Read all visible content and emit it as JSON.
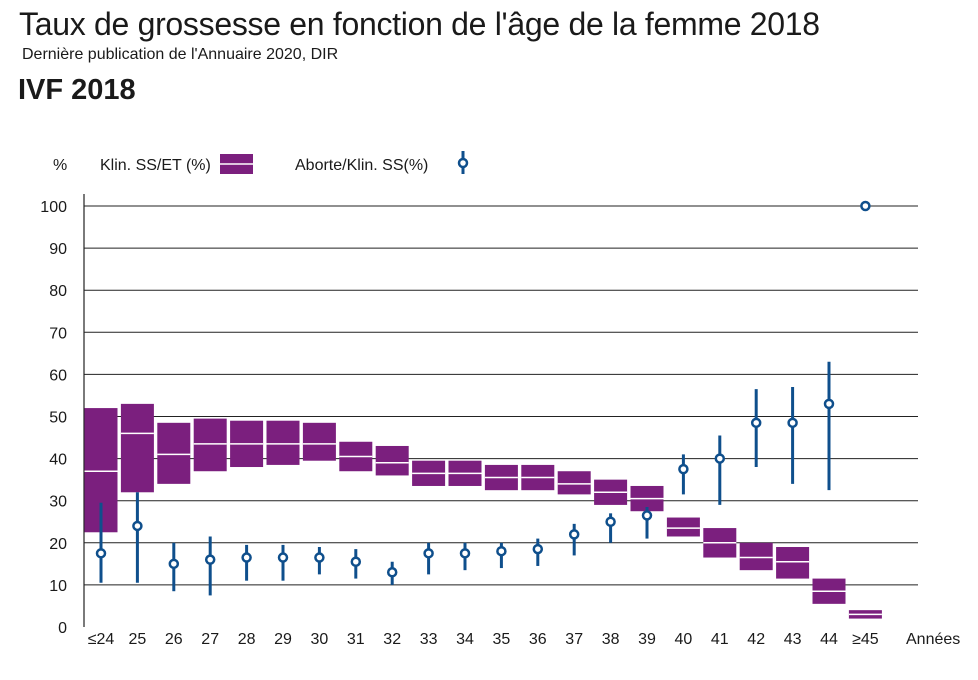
{
  "title": "Taux de grossesse en fonction de l'âge de la femme 2018",
  "subtitle": "Dernière publication de l'Annuaire 2020, DIR",
  "heading": "IVF 2018",
  "colors": {
    "box": "#7b1f7e",
    "dot": "#0f4f8c",
    "grid": "#222222"
  },
  "chart_data": {
    "type": "boxplot-with-error-bars",
    "ylabel": "%",
    "xlabel": "Années",
    "ylim": [
      0,
      100
    ],
    "yticks": [
      0,
      10,
      20,
      30,
      40,
      50,
      60,
      70,
      80,
      90,
      100
    ],
    "legend": {
      "box_label": "Klin. SS/ET (%)",
      "dot_label": "Aborte/Klin. SS(%)"
    },
    "categories": [
      "≤24",
      "25",
      "26",
      "27",
      "28",
      "29",
      "30",
      "31",
      "32",
      "33",
      "34",
      "35",
      "36",
      "37",
      "38",
      "39",
      "40",
      "41",
      "42",
      "43",
      "44",
      "≥45"
    ],
    "series": [
      {
        "name": "Klin. SS/ET (%)",
        "low": [
          22.5,
          32.0,
          34.0,
          37.0,
          38.0,
          38.5,
          39.5,
          37.0,
          36.0,
          33.5,
          33.5,
          32.5,
          32.5,
          31.5,
          29.0,
          27.5,
          21.5,
          16.5,
          13.5,
          11.5,
          5.5,
          2.0
        ],
        "mid": [
          37.0,
          46.0,
          41.0,
          43.5,
          43.5,
          43.5,
          43.5,
          40.5,
          39.0,
          36.5,
          36.5,
          35.5,
          35.5,
          34.0,
          32.0,
          30.5,
          23.5,
          20.0,
          16.5,
          15.5,
          8.5,
          3.0
        ],
        "high": [
          52.0,
          53.0,
          48.5,
          49.5,
          49.0,
          49.0,
          48.5,
          44.0,
          43.0,
          39.5,
          39.5,
          38.5,
          38.5,
          37.0,
          35.0,
          33.5,
          26.0,
          23.5,
          20.0,
          19.0,
          11.5,
          4.0
        ]
      },
      {
        "name": "Aborte/Klin. SS(%)",
        "value": [
          17.5,
          24.0,
          15.0,
          16.0,
          16.5,
          16.5,
          16.5,
          15.5,
          13.0,
          17.5,
          17.5,
          18.0,
          18.5,
          22.0,
          25.0,
          26.5,
          37.5,
          40.0,
          48.5,
          48.5,
          53.0,
          100.0
        ],
        "low": [
          10.5,
          10.5,
          8.5,
          7.5,
          11.0,
          11.0,
          12.5,
          11.5,
          10.0,
          12.5,
          13.5,
          14.0,
          14.5,
          17.0,
          20.0,
          21.0,
          31.5,
          29.0,
          38.0,
          34.0,
          32.5,
          100.0
        ],
        "high": [
          29.5,
          32.0,
          20.0,
          21.5,
          19.5,
          19.5,
          19.0,
          18.5,
          15.5,
          20.0,
          20.0,
          20.0,
          21.0,
          24.5,
          27.0,
          28.5,
          41.0,
          45.5,
          56.5,
          57.0,
          63.0,
          100.0
        ]
      }
    ]
  }
}
